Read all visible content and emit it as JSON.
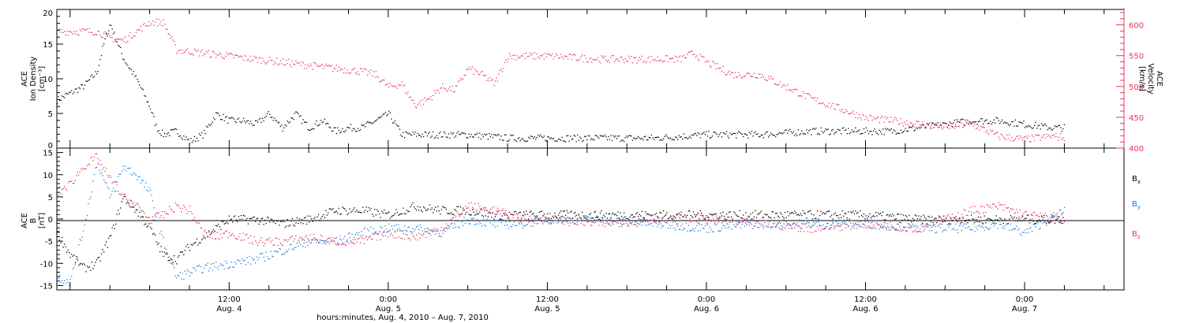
{
  "colors": {
    "black": "#000000",
    "pink": "#e8345f",
    "blue": "#1a7fe0"
  },
  "xaxis": {
    "label": "hours:minutes, Aug.  4, 2010 – Aug.  7, 2010",
    "ticks": [
      {
        "t": 12,
        "time": "12:00",
        "date": "Aug. 4"
      },
      {
        "t": 24,
        "time": "0:00",
        "date": "Aug. 5"
      },
      {
        "t": 36,
        "time": "12:00",
        "date": "Aug. 5"
      },
      {
        "t": 48,
        "time": "0:00",
        "date": "Aug. 6"
      },
      {
        "t": 60,
        "time": "12:00",
        "date": "Aug. 6"
      },
      {
        "t": 72,
        "time": "0:00",
        "date": "Aug. 7"
      }
    ]
  },
  "top_panel": {
    "ylabel_left": [
      "ACE",
      "Ion Density",
      "[cm⁻³]"
    ],
    "ylabel_right": [
      "ACE",
      "Velocity",
      "[km/s]"
    ],
    "left_ticks": [
      "0",
      "5",
      "10",
      "15",
      "20"
    ],
    "right_ticks": [
      "400",
      "450",
      "500",
      "550",
      "600"
    ]
  },
  "bottom_panel": {
    "ylabel_left": [
      "ACE",
      "B",
      "[nT]"
    ],
    "left_ticks": [
      "-15",
      "-10",
      "-5",
      "0",
      "5",
      "10",
      "15"
    ],
    "legend": [
      {
        "label": "Bx",
        "color": "#000000"
      },
      {
        "label": "By",
        "color": "#1a7fe0"
      },
      {
        "label": "Bz",
        "color": "#e8345f"
      }
    ]
  },
  "chart_data": [
    {
      "type": "scatter",
      "title": "",
      "xlabel": "hours:minutes, Aug.  4, 2010 – Aug.  7, 2010",
      "x_unit": "hours since 2010-08-04 00:00",
      "xlim": [
        -1,
        79.5
      ],
      "ylim_left": [
        0,
        20
      ],
      "ylim_right": [
        400,
        625
      ],
      "series": [
        {
          "name": "Ion Density",
          "axis": "left",
          "color": "#000000",
          "x": [
            -1,
            0,
            1,
            2,
            2.5,
            3,
            4,
            5,
            6,
            6.5,
            7,
            8,
            9,
            10,
            11,
            12,
            13,
            14,
            15,
            16,
            17,
            18,
            19,
            20,
            21,
            22,
            23,
            24,
            25,
            26,
            28,
            30,
            33,
            36,
            40,
            44,
            48,
            52,
            56,
            58,
            60,
            62,
            64,
            66,
            68,
            70,
            72,
            74,
            75
          ],
          "y": [
            7,
            8,
            9,
            11,
            15,
            18,
            13,
            10,
            6,
            3,
            2,
            2.5,
            1,
            2,
            5,
            4,
            4,
            3.5,
            5,
            3,
            5,
            3,
            4,
            2.5,
            3,
            3,
            4,
            5,
            2,
            2,
            2,
            2,
            1.5,
            1.5,
            1.5,
            1.5,
            2,
            2,
            2.5,
            2.5,
            2.5,
            2.5,
            3,
            3.5,
            4,
            4,
            3.5,
            3,
            3
          ]
        },
        {
          "name": "Velocity",
          "axis": "right",
          "color": "#e8345f",
          "x": [
            -1,
            1,
            2,
            3,
            4,
            5,
            6,
            7,
            8,
            10,
            12,
            14,
            16,
            18,
            20,
            22,
            23,
            24,
            25,
            26,
            27,
            28,
            29,
            30,
            31,
            32,
            33,
            36,
            40,
            44,
            46,
            47,
            48,
            49,
            50,
            52,
            54,
            56,
            58,
            60,
            62,
            64,
            66,
            68,
            70,
            72,
            74,
            75
          ],
          "y": [
            590,
            590,
            590,
            580,
            575,
            590,
            605,
            605,
            560,
            555,
            550,
            545,
            540,
            535,
            530,
            525,
            520,
            500,
            505,
            470,
            480,
            500,
            495,
            530,
            520,
            505,
            550,
            550,
            545,
            545,
            545,
            555,
            540,
            530,
            520,
            520,
            500,
            480,
            465,
            450,
            445,
            440,
            435,
            440,
            420,
            415,
            420,
            418
          ]
        }
      ]
    },
    {
      "type": "scatter",
      "title": "",
      "xlabel": "hours:minutes, Aug.  4, 2010 – Aug.  7, 2010",
      "x_unit": "hours since 2010-08-04 00:00",
      "xlim": [
        -1,
        79.5
      ],
      "ylim": [
        -16,
        16
      ],
      "series": [
        {
          "name": "Bx",
          "color": "#000000",
          "x": [
            -1,
            0,
            1,
            2,
            3,
            4,
            5,
            6,
            7,
            8,
            9,
            10,
            11,
            12,
            14,
            16,
            18,
            20,
            22,
            24,
            26,
            28,
            30,
            32,
            34,
            36,
            40,
            44,
            48,
            52,
            56,
            60,
            64,
            68,
            72,
            75
          ],
          "y": [
            -3,
            -8,
            -11,
            -10,
            -4,
            5,
            2,
            -2,
            -8,
            -9,
            -6,
            -4,
            -2,
            0,
            0,
            -1,
            0,
            2,
            2,
            1,
            3,
            2,
            2,
            1,
            1,
            1,
            1,
            1,
            1,
            1,
            1,
            1,
            0,
            0,
            0,
            0
          ]
        },
        {
          "name": "By",
          "color": "#1a7fe0",
          "x": [
            -1,
            0,
            1,
            2,
            3,
            4,
            5,
            6,
            7,
            8,
            10,
            12,
            14,
            16,
            18,
            20,
            22,
            24,
            26,
            28,
            30,
            32,
            34,
            36,
            40,
            44,
            48,
            52,
            56,
            60,
            64,
            68,
            70,
            72,
            75
          ],
          "y": [
            -13,
            -14,
            -2,
            13,
            5,
            12,
            10,
            6,
            -5,
            -13,
            -11,
            -10,
            -9,
            -7,
            -5,
            -5,
            -3,
            -2,
            -2,
            -3,
            0,
            -1,
            -1,
            0,
            0,
            -1,
            -2,
            -1,
            -1,
            -1,
            -2,
            -2,
            -1,
            -3,
            2
          ]
        },
        {
          "name": "Bz",
          "color": "#e8345f",
          "x": [
            -1,
            0,
            1,
            2,
            3,
            4,
            5,
            6,
            7,
            8,
            9,
            10,
            11,
            12,
            14,
            16,
            18,
            20,
            22,
            24,
            26,
            28,
            30,
            32,
            34,
            36,
            40,
            44,
            48,
            52,
            56,
            60,
            64,
            68,
            70,
            72,
            75
          ],
          "y": [
            6,
            8,
            12,
            14,
            9,
            5,
            3,
            0,
            1,
            3,
            2,
            -3,
            -4,
            -3,
            -5,
            -5,
            -4,
            -5,
            -5,
            -3,
            -4,
            -2,
            3,
            2,
            0,
            0,
            -1,
            0,
            0,
            -1,
            -2,
            -1,
            -2,
            2,
            3,
            1,
            0
          ]
        }
      ]
    }
  ]
}
